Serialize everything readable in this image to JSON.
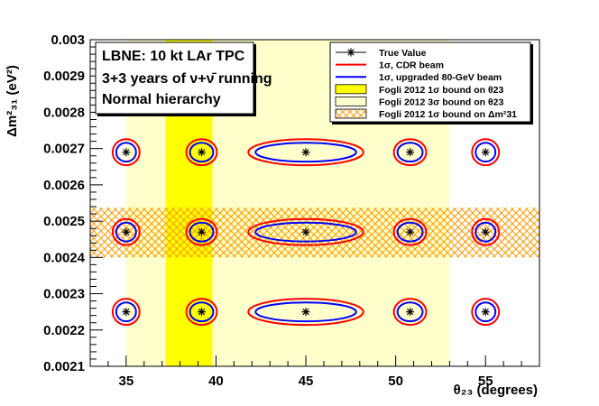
{
  "chart_data": {
    "type": "scatter",
    "title": "",
    "xlabel": "θ23 (degrees)",
    "ylabel": "Δm²31 (eV²)",
    "xlim": [
      33,
      58
    ],
    "ylim": [
      0.0021,
      0.003
    ],
    "x_ticks": [
      "35",
      "40",
      "45",
      "50",
      "55"
    ],
    "y_ticks": [
      "0.0021",
      "0.0022",
      "0.0023",
      "0.0024",
      "0.0025",
      "0.0026",
      "0.0027",
      "0.0028",
      "0.0029",
      "0.003"
    ],
    "info_box": [
      "LBNE: 10 kt LAr TPC",
      "3+3 years of ν+ν̄ running",
      "Normal hierarchy"
    ],
    "legend": [
      {
        "label": "True Value",
        "kind": "marker"
      },
      {
        "label": "1σ, CDR beam",
        "kind": "line",
        "color": "#ff0000"
      },
      {
        "label": "1σ, upgraded 80-GeV beam",
        "kind": "line",
        "color": "#0000ff"
      },
      {
        "label": "Fogli 2012 1σ bound on θ23",
        "kind": "fill",
        "color": "#ffff00"
      },
      {
        "label": "Fogli 2012 3σ bound on θ23",
        "kind": "fill",
        "color": "#ffffcc"
      },
      {
        "label": "Fogli 2012 1σ bound on Δm²31",
        "kind": "hatch",
        "color": "#ff9900"
      }
    ],
    "bands": {
      "theta23_3sigma": [
        35,
        53
      ],
      "theta23_1sigma": [
        37.2,
        39.8
      ],
      "dm2_1sigma": [
        0.0024,
        0.002537
      ]
    },
    "true_values": {
      "theta23": [
        35,
        39.2,
        45,
        50.8,
        55
      ],
      "dm2": [
        0.00225,
        0.00247,
        0.00269
      ]
    },
    "series": [
      {
        "name": "1σ, CDR beam",
        "color": "#ff0000",
        "half_width_deg": [
          0.75,
          0.85,
          3.2,
          0.9,
          0.75
        ],
        "half_height": 3.6e-05
      },
      {
        "name": "1σ, upgraded 80-GeV beam",
        "color": "#0000ff",
        "half_width_deg": [
          0.55,
          0.65,
          2.8,
          0.7,
          0.55
        ],
        "half_height": 2.6e-05
      }
    ]
  }
}
